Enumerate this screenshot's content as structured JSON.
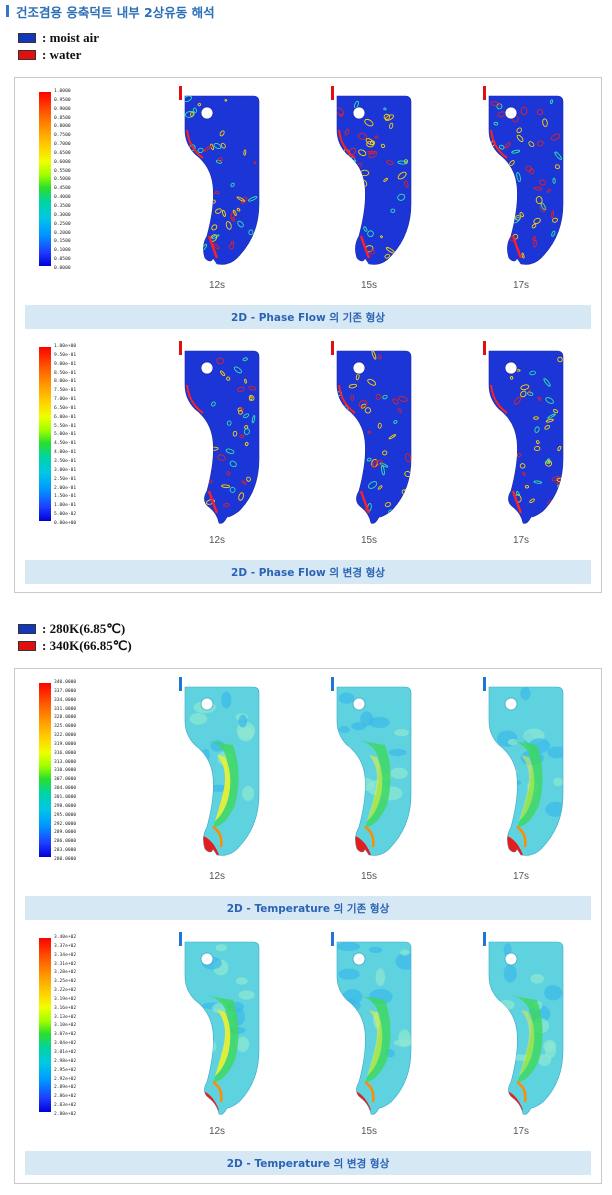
{
  "page_title": "건조겸용 응축덕트 내부 2상유동 해석",
  "phase_legend": [
    {
      "label": ": moist air",
      "color": "#1237b8"
    },
    {
      "label": ": water",
      "color": "#e01010"
    }
  ],
  "temp_legend": [
    {
      "label": ": 280K(6.85℃)",
      "color": "#1237b8"
    },
    {
      "label": ": 340K(66.85℃)",
      "color": "#e01010"
    }
  ],
  "phase_panel": {
    "rows": [
      {
        "scale": [
          "1.0000",
          "0.9500",
          "0.9000",
          "0.8500",
          "0.8000",
          "0.7500",
          "0.7000",
          "0.6500",
          "0.6000",
          "0.5500",
          "0.5000",
          "0.4500",
          "0.4000",
          "0.3500",
          "0.3000",
          "0.2500",
          "0.2000",
          "0.1500",
          "0.1000",
          "0.0500",
          "0.0000"
        ],
        "times": [
          "12s",
          "15s",
          "17s"
        ],
        "caption": "2D - Phase Flow 의 기존 형상"
      },
      {
        "scale": [
          "1.00e+00",
          "9.50e-01",
          "9.00e-01",
          "8.50e-01",
          "8.00e-01",
          "7.50e-01",
          "7.00e-01",
          "6.50e-01",
          "6.00e-01",
          "5.50e-01",
          "5.00e-01",
          "4.50e-01",
          "4.00e-01",
          "3.50e-01",
          "3.00e-01",
          "2.50e-01",
          "2.00e-01",
          "1.50e-01",
          "1.00e-01",
          "5.00e-02",
          "0.00e+00"
        ],
        "times": [
          "12s",
          "15s",
          "17s"
        ],
        "caption": "2D - Phase Flow 의 변경 형상"
      }
    ]
  },
  "temp_panel": {
    "rows": [
      {
        "scale": [
          "340.0000",
          "337.0000",
          "334.0000",
          "331.0000",
          "328.0000",
          "325.0000",
          "322.0000",
          "319.0000",
          "316.0000",
          "313.0000",
          "310.0000",
          "307.0000",
          "304.0000",
          "301.0000",
          "298.0000",
          "295.0000",
          "292.0000",
          "289.0000",
          "286.0000",
          "283.0000",
          "280.0000"
        ],
        "times": [
          "12s",
          "15s",
          "17s"
        ],
        "caption": "2D - Temperature 의 기존 형상"
      },
      {
        "scale": [
          "3.40e+02",
          "3.37e+02",
          "3.34e+02",
          "3.31e+02",
          "3.28e+02",
          "3.25e+02",
          "3.22e+02",
          "3.19e+02",
          "3.16e+02",
          "3.13e+02",
          "3.10e+02",
          "3.07e+02",
          "3.04e+02",
          "3.01e+02",
          "2.98e+02",
          "2.95e+02",
          "2.92e+02",
          "2.89e+02",
          "2.86e+02",
          "2.83e+02",
          "2.80e+02"
        ],
        "times": [
          "12s",
          "15s",
          "17s"
        ],
        "caption": "2D - Temperature 의 변경 형상"
      }
    ]
  }
}
